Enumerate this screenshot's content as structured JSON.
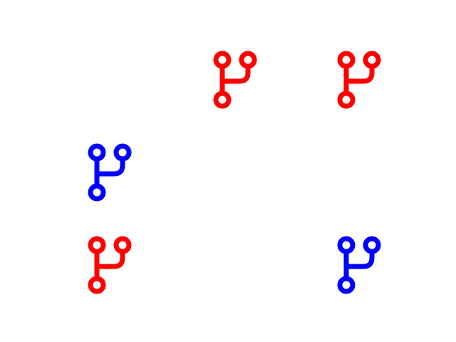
{
  "colors": {
    "background": "#ffffff",
    "red": "#ff0000",
    "blue": "#0000ff"
  },
  "icons": [
    {
      "name": "branch-icon",
      "color": "red"
    },
    {
      "name": "branch-icon",
      "color": "red"
    },
    {
      "name": "branch-icon",
      "color": "blue"
    },
    {
      "name": "branch-icon",
      "color": "red"
    },
    {
      "name": "branch-icon",
      "color": "blue"
    }
  ]
}
